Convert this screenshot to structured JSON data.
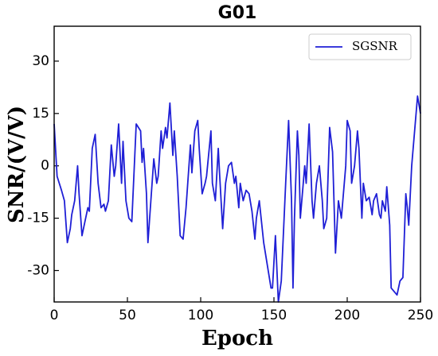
{
  "chart_data": {
    "type": "line",
    "title": "G01",
    "xlabel": "Epoch",
    "ylabel": "SNR/(V/V)",
    "xlim": [
      0,
      250
    ],
    "ylim": [
      -39,
      40
    ],
    "xticks": [
      0,
      50,
      100,
      150,
      200,
      250
    ],
    "yticks": [
      -30,
      -15,
      0,
      15,
      30
    ],
    "legend": "upper right",
    "x": [
      0,
      2,
      5,
      7,
      9,
      11,
      12,
      14,
      16,
      17,
      19,
      21,
      23,
      24,
      26,
      28,
      30,
      32,
      34,
      35,
      37,
      39,
      41,
      42,
      44,
      46,
      47,
      49,
      51,
      53,
      56,
      59,
      60,
      61,
      63,
      64,
      66,
      68,
      70,
      71,
      73,
      74,
      76,
      77,
      79,
      81,
      82,
      84,
      86,
      88,
      90,
      91,
      93,
      94,
      96,
      98,
      99,
      101,
      103,
      104,
      107,
      108,
      110,
      112,
      113,
      115,
      117,
      119,
      121,
      123,
      124,
      126,
      127,
      129,
      131,
      133,
      135,
      137,
      138,
      140,
      143,
      148,
      149,
      151,
      153,
      155,
      158,
      160,
      162,
      163,
      164,
      166,
      167,
      168,
      170,
      171,
      172,
      174,
      176,
      177,
      179,
      181,
      183,
      184,
      186,
      188,
      190,
      192,
      194,
      196,
      198,
      199,
      200,
      202,
      203,
      205,
      207,
      208,
      210,
      211,
      213,
      215,
      217,
      218,
      220,
      222,
      223,
      224,
      226,
      227,
      229,
      230,
      232,
      234,
      236,
      238,
      239,
      240,
      241,
      242,
      244,
      246,
      248,
      250
    ],
    "series": [
      {
        "name": "SGSNR",
        "color": "#1f1fd6",
        "values": [
          12,
          -3,
          -7,
          -10,
          -22,
          -18,
          -14,
          -10,
          0,
          -8,
          -20,
          -16,
          -12,
          -13,
          5,
          9,
          -5,
          -12,
          -11,
          -13,
          -10,
          6,
          -3,
          0,
          12,
          -5,
          7,
          -10,
          -15,
          -16,
          12,
          10,
          1,
          5,
          -8,
          -22,
          -10,
          2,
          -5,
          -3,
          10,
          5,
          11,
          8,
          18,
          3,
          10,
          -3,
          -20,
          -21,
          -12,
          -6,
          6,
          -2,
          10,
          13,
          5,
          -8,
          -5,
          -3,
          10,
          -5,
          -10,
          5,
          -3,
          -18,
          -5,
          0,
          1,
          -5,
          -3,
          -12,
          -5,
          -10,
          -7,
          -8,
          -13,
          -21,
          -15,
          -10,
          -22,
          -35,
          -35,
          -20,
          -39,
          -33,
          -5,
          13,
          -10,
          -35,
          -15,
          10,
          3,
          -15,
          -5,
          0,
          -5,
          12,
          -10,
          -15,
          -5,
          0,
          -10,
          -18,
          -15,
          11,
          4,
          -25,
          -10,
          -15,
          -5,
          0,
          13,
          10,
          -5,
          0,
          10,
          5,
          -15,
          -5,
          -10,
          -9,
          -14,
          -10,
          -8,
          -14,
          -15,
          -10,
          -13,
          -6,
          -17,
          -35,
          -36,
          -37,
          -33,
          -32,
          -20,
          -8,
          -12,
          -17,
          0,
          10,
          20,
          15
        ]
      }
    ]
  }
}
